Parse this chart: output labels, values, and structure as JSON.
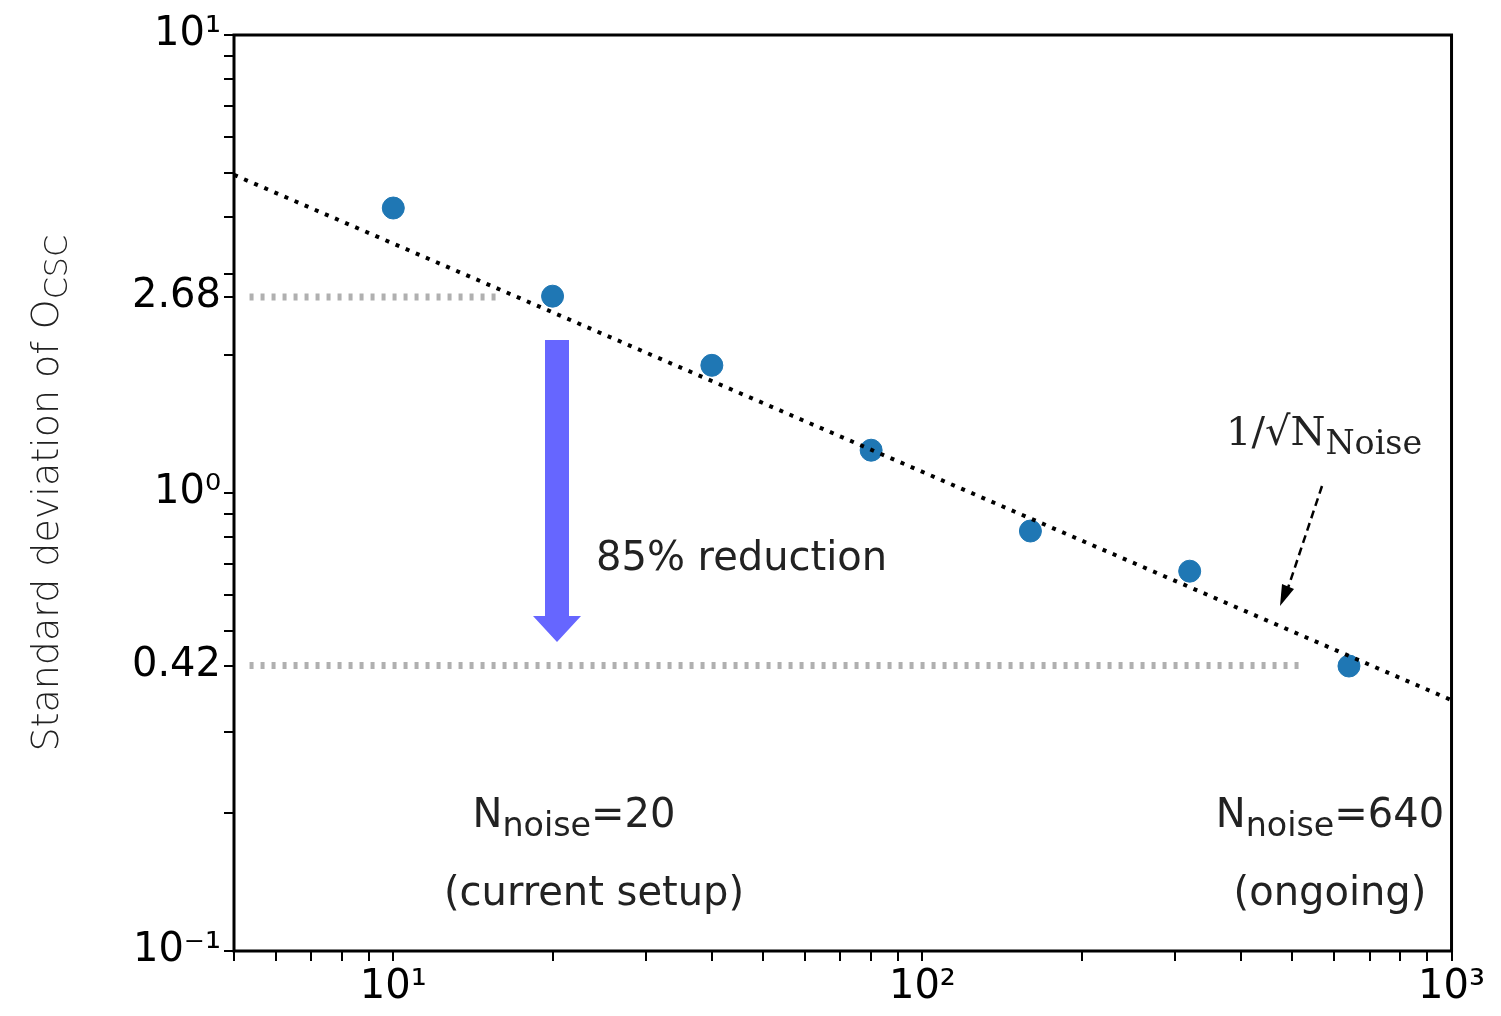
{
  "chart_data": {
    "type": "scatter",
    "ylabel": "Standard deviation of O$_{CSC}$",
    "log": "xy",
    "xlim": [
      5,
      1000
    ],
    "ylim": [
      0.1,
      10
    ],
    "xticks": [
      {
        "value": 5,
        "label": null
      },
      {
        "value": 6,
        "label": null
      },
      {
        "value": 7,
        "label": null
      },
      {
        "value": 8,
        "label": null
      },
      {
        "value": 9,
        "label": null
      },
      {
        "value": 10,
        "label": "10¹"
      },
      {
        "value": 20,
        "label": null
      },
      {
        "value": 30,
        "label": null
      },
      {
        "value": 40,
        "label": null
      },
      {
        "value": 50,
        "label": null
      },
      {
        "value": 60,
        "label": null
      },
      {
        "value": 70,
        "label": null
      },
      {
        "value": 80,
        "label": null
      },
      {
        "value": 90,
        "label": null
      },
      {
        "value": 100,
        "label": "10²"
      },
      {
        "value": 200,
        "label": null
      },
      {
        "value": 300,
        "label": null
      },
      {
        "value": 400,
        "label": null
      },
      {
        "value": 500,
        "label": null
      },
      {
        "value": 600,
        "label": null
      },
      {
        "value": 700,
        "label": null
      },
      {
        "value": 800,
        "label": null
      },
      {
        "value": 900,
        "label": null
      },
      {
        "value": 1000,
        "label": "10³"
      }
    ],
    "yticks": [
      {
        "value": 0.1,
        "label": "10⁻¹"
      },
      {
        "value": 0.2,
        "label": null
      },
      {
        "value": 0.3,
        "label": null
      },
      {
        "value": 0.42,
        "label": "0.42"
      },
      {
        "value": 0.5,
        "label": null
      },
      {
        "value": 0.6,
        "label": null
      },
      {
        "value": 0.7,
        "label": null
      },
      {
        "value": 0.8,
        "label": null
      },
      {
        "value": 0.9,
        "label": null
      },
      {
        "value": 1,
        "label": "10⁰"
      },
      {
        "value": 2,
        "label": null
      },
      {
        "value": 2.68,
        "label": "2.68"
      },
      {
        "value": 3,
        "label": null
      },
      {
        "value": 4,
        "label": null
      },
      {
        "value": 5,
        "label": null
      },
      {
        "value": 6,
        "label": null
      },
      {
        "value": 7,
        "label": null
      },
      {
        "value": 8,
        "label": null
      },
      {
        "value": 9,
        "label": null
      },
      {
        "value": 10,
        "label": "10¹"
      }
    ],
    "series": [
      {
        "type": "scatter",
        "color": "#1f77b4",
        "marker": "circle",
        "x": [
          10,
          20,
          40,
          80,
          160,
          320,
          640
        ],
        "values": [
          4.19,
          2.69,
          1.9,
          1.24,
          0.826,
          0.675,
          0.419
        ]
      },
      {
        "type": "line",
        "color": "#000000",
        "line_style": "dotted",
        "marker": "none",
        "x": [
          5,
          1000
        ],
        "values": [
          4.95,
          0.353
        ]
      },
      {
        "type": "line",
        "color": "#b0b0b0",
        "line_style": "dotted",
        "marker": "none",
        "x": [
          5.35,
          15.7
        ],
        "values": [
          2.68,
          2.68
        ]
      },
      {
        "type": "line",
        "color": "#b0b0b0",
        "line_style": "dotted",
        "marker": "none",
        "x": [
          5.35,
          519
        ],
        "values": [
          0.42,
          0.42
        ]
      }
    ],
    "annotations": [
      "85% reduction",
      "1/√N$_{Noise}$",
      "N$_{noise}$=20",
      "(current setup)",
      "N$_{noise}$=640",
      "(ongoing)"
    ]
  }
}
